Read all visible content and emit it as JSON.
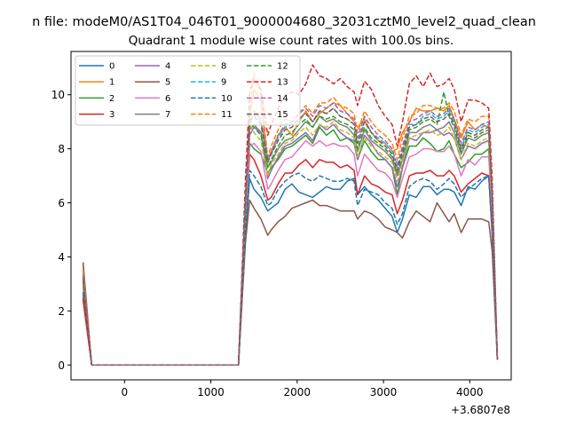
{
  "chart_data": {
    "type": "line",
    "suptitle": "n file: modeM0/AS1T04_046T01_9000004680_32031cztM0_level2_quad_clean",
    "title": "Quadrant 1 module wise count rates with 100.0s bins.",
    "xlabel": "",
    "ylabel": "",
    "x_offset_label": "+3.6807e8",
    "xlim": [
      -620,
      4480
    ],
    "ylim": [
      -0.55,
      11.6
    ],
    "xticks": [
      0,
      1000,
      2000,
      3000,
      4000
    ],
    "xtick_labels": [
      "0",
      "1000",
      "2000",
      "3000",
      "4000"
    ],
    "yticks": [
      0,
      2,
      4,
      6,
      8,
      10
    ],
    "ytick_labels": [
      "0",
      "2",
      "4",
      "6",
      "8",
      "10"
    ],
    "grid": false,
    "legend_position": "upper-left",
    "legend_columns": 4,
    "x": [
      -480,
      -380,
      -280,
      -180,
      -80,
      20,
      120,
      220,
      320,
      420,
      520,
      620,
      720,
      820,
      920,
      1020,
      1120,
      1220,
      1320,
      1400,
      1450,
      1500,
      1580,
      1660,
      1700,
      1780,
      1860,
      1940,
      2020,
      2100,
      2180,
      2260,
      2340,
      2420,
      2500,
      2580,
      2660,
      2700,
      2780,
      2860,
      2940,
      3020,
      3100,
      3160,
      3220,
      3300,
      3380,
      3460,
      3540,
      3620,
      3700,
      3760,
      3820,
      3900,
      3980,
      4060,
      4140,
      4220,
      4260,
      4320
    ],
    "series": [
      {
        "name": "0",
        "color": "#1f77b4",
        "dash": "solid",
        "values": [
          2.6,
          0,
          0,
          0,
          0,
          0,
          0,
          0,
          0,
          0,
          0,
          0,
          0,
          0,
          0,
          0,
          0,
          0,
          0,
          4.8,
          6.9,
          6.5,
          6.2,
          5.7,
          5.8,
          6.0,
          6.5,
          6.7,
          6.4,
          6.3,
          6.2,
          6.4,
          6.6,
          6.5,
          6.5,
          6.8,
          6.9,
          6.3,
          6.6,
          6.3,
          6.1,
          5.8,
          5.5,
          4.9,
          5.4,
          6.3,
          6.2,
          6.6,
          6.6,
          6.3,
          6.5,
          6.5,
          6.4,
          5.9,
          6.6,
          6.5,
          6.8,
          7.0,
          4.8,
          0.2
        ]
      },
      {
        "name": "1",
        "color": "#ff7f0e",
        "dash": "solid",
        "values": [
          3.7,
          0,
          0,
          0,
          0,
          0,
          0,
          0,
          0,
          0,
          0,
          0,
          0,
          0,
          0,
          0,
          0,
          0,
          0,
          5.9,
          9.2,
          10.2,
          9.8,
          7.5,
          7.9,
          8.5,
          8.8,
          8.5,
          9.0,
          9.4,
          9.0,
          9.3,
          9.5,
          9.7,
          9.6,
          9.3,
          9.0,
          8.8,
          9.1,
          8.6,
          8.3,
          8.2,
          7.9,
          8.0,
          8.6,
          9.0,
          9.5,
          9.4,
          9.4,
          9.5,
          9.4,
          9.6,
          9.1,
          8.4,
          9.0,
          8.7,
          8.9,
          8.8,
          6.1,
          0.2
        ]
      },
      {
        "name": "2",
        "color": "#2ca02c",
        "dash": "solid",
        "values": [
          3.1,
          0,
          0,
          0,
          0,
          0,
          0,
          0,
          0,
          0,
          0,
          0,
          0,
          0,
          0,
          0,
          0,
          0,
          0,
          5.0,
          8.2,
          8.0,
          7.8,
          7.1,
          7.3,
          7.6,
          8.0,
          8.1,
          8.3,
          8.5,
          8.2,
          8.8,
          8.5,
          8.7,
          8.3,
          8.4,
          8.2,
          7.6,
          8.3,
          7.9,
          7.6,
          7.6,
          7.3,
          6.3,
          7.3,
          8.1,
          8.1,
          8.4,
          8.2,
          7.9,
          8.0,
          8.3,
          7.8,
          7.3,
          7.5,
          7.8,
          7.8,
          8.0,
          5.4,
          0.2
        ]
      },
      {
        "name": "3",
        "color": "#d62728",
        "dash": "solid",
        "values": [
          2.4,
          0,
          0,
          0,
          0,
          0,
          0,
          0,
          0,
          0,
          0,
          0,
          0,
          0,
          0,
          0,
          0,
          0,
          0,
          5.2,
          7.8,
          7.6,
          7.0,
          6.1,
          6.2,
          6.7,
          7.1,
          7.1,
          7.4,
          7.6,
          7.3,
          7.6,
          7.5,
          7.5,
          7.3,
          7.4,
          7.2,
          6.3,
          7.0,
          6.7,
          6.6,
          6.4,
          6.3,
          5.6,
          6.1,
          7.0,
          7.1,
          7.1,
          7.2,
          7.0,
          7.0,
          7.2,
          7.0,
          6.4,
          6.7,
          6.9,
          7.1,
          7.0,
          4.9,
          0.2
        ]
      },
      {
        "name": "4",
        "color": "#9467bd",
        "dash": "solid",
        "values": [
          3.2,
          0,
          0,
          0,
          0,
          0,
          0,
          0,
          0,
          0,
          0,
          0,
          0,
          0,
          0,
          0,
          0,
          0,
          0,
          5.5,
          8.5,
          8.8,
          8.6,
          6.9,
          7.2,
          7.7,
          8.1,
          8.2,
          8.4,
          8.6,
          8.3,
          8.9,
          8.7,
          8.9,
          8.6,
          8.4,
          8.3,
          7.6,
          8.5,
          8.2,
          7.8,
          7.6,
          7.3,
          6.6,
          7.3,
          8.4,
          8.3,
          8.6,
          8.6,
          8.7,
          8.5,
          8.6,
          8.4,
          7.6,
          8.1,
          8.0,
          8.2,
          8.3,
          5.8,
          0.2
        ]
      },
      {
        "name": "5",
        "color": "#8c564b",
        "dash": "solid",
        "values": [
          3.8,
          0,
          0,
          0,
          0,
          0,
          0,
          0,
          0,
          0,
          0,
          0,
          0,
          0,
          0,
          0,
          0,
          0,
          0,
          4.5,
          6.1,
          5.8,
          5.4,
          4.8,
          5.0,
          5.3,
          5.5,
          5.8,
          5.9,
          6.0,
          6.1,
          5.9,
          5.9,
          5.8,
          5.7,
          5.7,
          5.7,
          5.4,
          5.7,
          5.6,
          5.4,
          5.1,
          5.0,
          4.9,
          4.7,
          5.3,
          5.7,
          5.5,
          5.3,
          6.0,
          5.6,
          5.3,
          5.6,
          4.9,
          5.4,
          5.4,
          5.4,
          5.3,
          4.2,
          0.2
        ]
      },
      {
        "name": "6",
        "color": "#e377c2",
        "dash": "solid",
        "values": [
          2.9,
          0,
          0,
          0,
          0,
          0,
          0,
          0,
          0,
          0,
          0,
          0,
          0,
          0,
          0,
          0,
          0,
          0,
          0,
          5.3,
          8.1,
          8.2,
          7.9,
          6.5,
          6.7,
          7.2,
          7.6,
          7.7,
          8.0,
          8.3,
          8.1,
          8.3,
          8.1,
          8.2,
          8.1,
          8.1,
          7.8,
          7.0,
          7.8,
          7.5,
          7.2,
          7.1,
          6.8,
          6.2,
          6.9,
          7.7,
          7.8,
          8.0,
          8.0,
          7.9,
          7.9,
          8.1,
          7.8,
          7.0,
          7.6,
          7.4,
          7.7,
          7.7,
          5.5,
          0.2
        ]
      },
      {
        "name": "7",
        "color": "#7f7f7f",
        "dash": "solid",
        "values": [
          3.3,
          0,
          0,
          0,
          0,
          0,
          0,
          0,
          0,
          0,
          0,
          0,
          0,
          0,
          0,
          0,
          0,
          0,
          0,
          5.8,
          8.7,
          8.9,
          8.6,
          7.3,
          7.5,
          8.0,
          8.3,
          8.4,
          8.7,
          9.0,
          8.8,
          9.2,
          9.0,
          9.1,
          8.9,
          8.8,
          8.5,
          7.9,
          8.7,
          8.3,
          8.1,
          7.9,
          7.6,
          7.0,
          7.6,
          8.6,
          8.6,
          8.8,
          8.9,
          8.7,
          8.8,
          9.0,
          8.6,
          7.8,
          8.4,
          8.3,
          8.5,
          8.6,
          6.0,
          0.2
        ]
      },
      {
        "name": "8",
        "color": "#bcbd22",
        "dash": "dashed",
        "values": [
          3.0,
          0,
          0,
          0,
          0,
          0,
          0,
          0,
          0,
          0,
          0,
          0,
          0,
          0,
          0,
          0,
          0,
          0,
          0,
          5.6,
          8.9,
          8.6,
          8.3,
          7.0,
          7.4,
          7.8,
          8.2,
          8.3,
          8.6,
          8.8,
          8.5,
          8.9,
          8.8,
          9.0,
          8.7,
          8.6,
          8.4,
          7.7,
          8.4,
          8.1,
          7.9,
          7.7,
          7.5,
          6.8,
          7.5,
          8.4,
          8.5,
          8.6,
          8.7,
          8.5,
          8.6,
          8.8,
          8.4,
          7.6,
          8.2,
          8.1,
          8.3,
          8.4,
          5.9,
          0.2
        ]
      },
      {
        "name": "9",
        "color": "#17becf",
        "dash": "dashed",
        "values": [
          3.4,
          0,
          0,
          0,
          0,
          0,
          0,
          0,
          0,
          0,
          0,
          0,
          0,
          0,
          0,
          0,
          0,
          0,
          0,
          6.0,
          9.0,
          9.3,
          9.0,
          7.6,
          7.8,
          8.4,
          8.8,
          8.9,
          9.1,
          9.3,
          9.0,
          9.4,
          9.3,
          9.5,
          9.2,
          9.1,
          8.9,
          8.2,
          9.0,
          8.6,
          8.4,
          8.2,
          7.9,
          7.3,
          8.0,
          8.9,
          8.9,
          9.2,
          9.3,
          9.1,
          9.2,
          9.4,
          9.0,
          8.1,
          8.7,
          8.6,
          8.8,
          8.9,
          6.3,
          0.2
        ]
      },
      {
        "name": "10",
        "color": "#1f77b4",
        "dash": "dashed",
        "values": [
          2.7,
          0,
          0,
          0,
          0,
          0,
          0,
          0,
          0,
          0,
          0,
          0,
          0,
          0,
          0,
          0,
          0,
          0,
          0,
          5.0,
          7.2,
          7.0,
          6.6,
          5.9,
          6.0,
          6.5,
          6.8,
          7.0,
          7.1,
          6.9,
          6.8,
          7.0,
          6.9,
          6.8,
          6.8,
          6.9,
          6.8,
          5.9,
          6.5,
          6.4,
          6.3,
          6.0,
          5.8,
          5.2,
          5.6,
          6.6,
          6.8,
          6.9,
          6.8,
          6.5,
          6.7,
          6.9,
          6.7,
          6.2,
          6.5,
          6.7,
          6.9,
          7.0,
          5.0,
          0.2
        ]
      },
      {
        "name": "11",
        "color": "#ff7f0e",
        "dash": "dashed",
        "values": [
          3.5,
          0,
          0,
          0,
          0,
          0,
          0,
          0,
          0,
          0,
          0,
          0,
          0,
          0,
          0,
          0,
          0,
          0,
          0,
          6.2,
          9.4,
          10.8,
          10.0,
          7.7,
          8.1,
          8.7,
          9.1,
          9.0,
          9.3,
          9.6,
          9.3,
          9.7,
          9.7,
          9.9,
          9.6,
          9.5,
          9.3,
          8.6,
          9.4,
          9.0,
          8.7,
          8.5,
          8.2,
          7.6,
          8.4,
          9.2,
          9.3,
          9.6,
          9.6,
          9.5,
          9.5,
          9.7,
          9.4,
          8.5,
          9.1,
          9.0,
          9.2,
          9.2,
          6.5,
          0.2
        ]
      },
      {
        "name": "12",
        "color": "#2ca02c",
        "dash": "dashed",
        "values": [
          3.1,
          0,
          0,
          0,
          0,
          0,
          0,
          0,
          0,
          0,
          0,
          0,
          0,
          0,
          0,
          0,
          0,
          0,
          0,
          5.9,
          9.1,
          8.8,
          8.5,
          7.3,
          7.6,
          8.1,
          8.5,
          8.6,
          8.9,
          9.1,
          8.8,
          9.2,
          9.1,
          9.2,
          9.0,
          8.9,
          8.7,
          8.0,
          8.8,
          8.4,
          8.2,
          8.0,
          7.7,
          7.1,
          7.8,
          8.7,
          8.8,
          9.0,
          9.1,
          8.9,
          10.1,
          9.2,
          8.8,
          7.9,
          8.5,
          8.4,
          8.6,
          8.7,
          6.1,
          0.2
        ]
      },
      {
        "name": "13",
        "color": "#d62728",
        "dash": "dashed",
        "values": [
          2.5,
          0,
          0,
          0,
          0,
          0,
          0,
          0,
          0,
          0,
          0,
          0,
          0,
          0,
          0,
          0,
          0,
          0,
          0,
          6.8,
          10.1,
          10.6,
          10.2,
          8.5,
          8.9,
          9.5,
          10.0,
          10.1,
          10.0,
          10.4,
          11.1,
          10.7,
          10.6,
          10.4,
          10.6,
          10.3,
          10.1,
          9.6,
          10.5,
          10.2,
          9.6,
          9.2,
          8.9,
          8.1,
          9.0,
          10.4,
          10.7,
          10.3,
          10.8,
          10.3,
          10.4,
          10.6,
          10.2,
          9.0,
          9.8,
          9.8,
          9.7,
          9.5,
          6.9,
          0.2
        ]
      },
      {
        "name": "14",
        "color": "#9467bd",
        "dash": "dashed",
        "values": [
          3.3,
          0,
          0,
          0,
          0,
          0,
          0,
          0,
          0,
          0,
          0,
          0,
          0,
          0,
          0,
          0,
          0,
          0,
          0,
          6.1,
          9.2,
          9.4,
          9.1,
          7.6,
          7.9,
          8.5,
          8.9,
          9.0,
          9.3,
          9.5,
          9.2,
          9.6,
          9.5,
          9.7,
          9.4,
          9.3,
          9.1,
          8.4,
          9.2,
          8.8,
          8.5,
          8.3,
          8.0,
          7.4,
          8.1,
          9.0,
          9.1,
          9.3,
          9.4,
          9.2,
          9.3,
          9.5,
          9.1,
          8.2,
          8.8,
          8.7,
          8.9,
          9.0,
          6.4,
          0.2
        ]
      },
      {
        "name": "15",
        "color": "#8c564b",
        "dash": "dashed",
        "values": [
          3.2,
          0,
          0,
          0,
          0,
          0,
          0,
          0,
          0,
          0,
          0,
          0,
          0,
          0,
          0,
          0,
          0,
          0,
          0,
          6.0,
          9.0,
          9.2,
          8.9,
          7.5,
          7.8,
          8.3,
          8.7,
          8.8,
          9.1,
          9.3,
          9.0,
          9.4,
          9.3,
          9.5,
          9.2,
          9.1,
          8.9,
          8.2,
          9.0,
          8.6,
          8.3,
          8.1,
          7.8,
          7.2,
          7.9,
          8.8,
          8.9,
          9.1,
          9.2,
          9.0,
          9.1,
          9.3,
          8.9,
          8.0,
          8.6,
          8.5,
          8.7,
          8.8,
          6.2,
          0.2
        ]
      }
    ]
  }
}
